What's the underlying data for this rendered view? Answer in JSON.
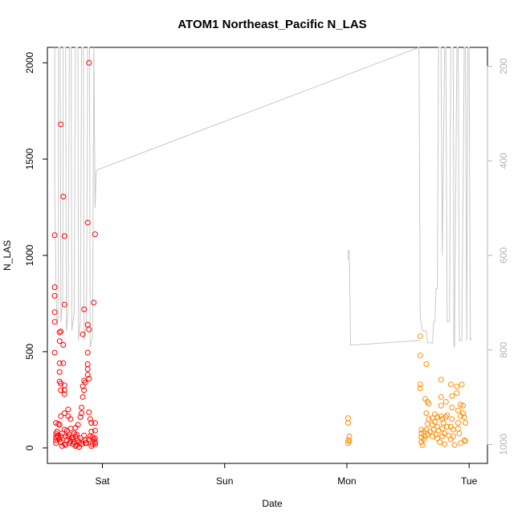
{
  "chart_data": {
    "type": "scatter",
    "title": "ATOM1 Northeast_Pacific N_LAS",
    "xlabel": "Date",
    "ylabel": "N_LAS",
    "x_axis": {
      "ticks": [
        {
          "label": "Sat",
          "day": 1
        },
        {
          "label": "Sun",
          "day": 2
        },
        {
          "label": "Mon",
          "day": 3
        },
        {
          "label": "Tue",
          "day": 4
        }
      ],
      "range_days": [
        0.55,
        4.15
      ],
      "note_units": "days relative to Friday 00:00"
    },
    "y_axis_left": {
      "ticks": [
        0,
        500,
        1000,
        1500,
        2000
      ],
      "range": [
        -80,
        2080
      ]
    },
    "y_axis_right": {
      "ticks": [
        200,
        400,
        600,
        800,
        1000
      ],
      "range": [
        1040,
        160
      ],
      "color": "#b4b4b4"
    },
    "colors": {
      "series_red": "#ff0000",
      "series_orange": "#ff8c00",
      "depth_line": "#c8c8c8"
    },
    "series": [
      {
        "color_key": "series_red",
        "points": [
          [
            0.61,
            1105
          ],
          [
            0.61,
            835
          ],
          [
            0.61,
            790
          ],
          [
            0.61,
            705
          ],
          [
            0.61,
            655
          ],
          [
            0.61,
            495
          ],
          [
            0.62,
            130
          ],
          [
            0.62,
            75
          ],
          [
            0.62,
            55
          ],
          [
            0.62,
            40
          ],
          [
            0.62,
            25
          ],
          [
            0.64,
            125
          ],
          [
            0.64,
            55
          ],
          [
            0.65,
            600
          ],
          [
            0.65,
            555
          ],
          [
            0.65,
            440
          ],
          [
            0.65,
            395
          ],
          [
            0.65,
            345
          ],
          [
            0.65,
            120
          ],
          [
            0.65,
            45
          ],
          [
            0.66,
            1680
          ],
          [
            0.66,
            605
          ],
          [
            0.66,
            335
          ],
          [
            0.66,
            300
          ],
          [
            0.66,
            165
          ],
          [
            0.66,
            60
          ],
          [
            0.66,
            30
          ],
          [
            0.68,
            1305
          ],
          [
            0.68,
            535
          ],
          [
            0.68,
            440
          ],
          [
            0.69,
            1100
          ],
          [
            0.69,
            745
          ],
          [
            0.69,
            325
          ],
          [
            0.69,
            300
          ],
          [
            0.69,
            280
          ],
          [
            0.69,
            180
          ],
          [
            0.69,
            95
          ],
          [
            0.69,
            20
          ],
          [
            0.7,
            60
          ],
          [
            0.7,
            15
          ],
          [
            0.71,
            40
          ],
          [
            0.72,
            200
          ],
          [
            0.72,
            165
          ],
          [
            0.72,
            60
          ],
          [
            0.73,
            70
          ],
          [
            0.73,
            25
          ],
          [
            0.74,
            150
          ],
          [
            0.74,
            100
          ],
          [
            0.74,
            35
          ],
          [
            0.75,
            55
          ],
          [
            0.76,
            20
          ],
          [
            0.77,
            75
          ],
          [
            0.77,
            30
          ],
          [
            0.78,
            105
          ],
          [
            0.78,
            60
          ],
          [
            0.78,
            10
          ],
          [
            0.79,
            15
          ],
          [
            0.8,
            120
          ],
          [
            0.8,
            40
          ],
          [
            0.81,
            30
          ],
          [
            0.81,
            5
          ],
          [
            0.82,
            160
          ],
          [
            0.82,
            50
          ],
          [
            0.83,
            210
          ],
          [
            0.83,
            180
          ],
          [
            0.83,
            20
          ],
          [
            0.84,
            590
          ],
          [
            0.84,
            320
          ],
          [
            0.84,
            265
          ],
          [
            0.85,
            720
          ],
          [
            0.85,
            350
          ],
          [
            0.85,
            300
          ],
          [
            0.85,
            65
          ],
          [
            0.86,
            340
          ],
          [
            0.86,
            40
          ],
          [
            0.87,
            25
          ],
          [
            0.88,
            1170
          ],
          [
            0.88,
            640
          ],
          [
            0.88,
            495
          ],
          [
            0.88,
            435
          ],
          [
            0.88,
            410
          ],
          [
            0.88,
            380
          ],
          [
            0.89,
            2000
          ],
          [
            0.89,
            615
          ],
          [
            0.89,
            360
          ],
          [
            0.89,
            185
          ],
          [
            0.89,
            45
          ],
          [
            0.9,
            150
          ],
          [
            0.9,
            60
          ],
          [
            0.91,
            130
          ],
          [
            0.91,
            85
          ],
          [
            0.92,
            20
          ],
          [
            0.93,
            755
          ],
          [
            0.93,
            45
          ],
          [
            0.94,
            1110
          ],
          [
            0.94,
            130
          ],
          [
            0.94,
            90
          ],
          [
            0.94,
            50
          ],
          [
            0.94,
            30
          ],
          [
            0.94,
            20
          ],
          [
            0.63,
            85
          ],
          [
            0.63,
            65
          ],
          [
            0.67,
            75
          ],
          [
            0.67,
            10
          ],
          [
            0.71,
            90
          ],
          [
            0.76,
            45
          ],
          [
            0.79,
            70
          ],
          [
            0.86,
            25
          ],
          [
            0.91,
            10
          ],
          [
            0.92,
            55
          ]
        ]
      },
      {
        "color_key": "series_orange",
        "points": [
          [
            3.01,
            155
          ],
          [
            3.01,
            130
          ],
          [
            3.01,
            40
          ],
          [
            3.01,
            25
          ],
          [
            3.02,
            60
          ],
          [
            3.02,
            35
          ],
          [
            3.6,
            580
          ],
          [
            3.6,
            480
          ],
          [
            3.6,
            330
          ],
          [
            3.6,
            310
          ],
          [
            3.61,
            95
          ],
          [
            3.61,
            75
          ],
          [
            3.61,
            55
          ],
          [
            3.61,
            30
          ],
          [
            3.62,
            15
          ],
          [
            3.63,
            85
          ],
          [
            3.63,
            45
          ],
          [
            3.64,
            255
          ],
          [
            3.64,
            60
          ],
          [
            3.65,
            435
          ],
          [
            3.65,
            180
          ],
          [
            3.65,
            95
          ],
          [
            3.66,
            240
          ],
          [
            3.66,
            125
          ],
          [
            3.66,
            70
          ],
          [
            3.67,
            230
          ],
          [
            3.67,
            150
          ],
          [
            3.68,
            85
          ],
          [
            3.7,
            155
          ],
          [
            3.7,
            120
          ],
          [
            3.7,
            60
          ],
          [
            3.71,
            95
          ],
          [
            3.72,
            175
          ],
          [
            3.72,
            135
          ],
          [
            3.73,
            70
          ],
          [
            3.74,
            160
          ],
          [
            3.74,
            110
          ],
          [
            3.74,
            50
          ],
          [
            3.75,
            90
          ],
          [
            3.76,
            30
          ],
          [
            3.77,
            355
          ],
          [
            3.77,
            265
          ],
          [
            3.77,
            220
          ],
          [
            3.77,
            165
          ],
          [
            3.78,
            150
          ],
          [
            3.78,
            100
          ],
          [
            3.78,
            60
          ],
          [
            3.79,
            130
          ],
          [
            3.8,
            20
          ],
          [
            3.8,
            75
          ],
          [
            3.81,
            240
          ],
          [
            3.81,
            160
          ],
          [
            3.82,
            170
          ],
          [
            3.82,
            110
          ],
          [
            3.83,
            65
          ],
          [
            3.85,
            330
          ],
          [
            3.85,
            110
          ],
          [
            3.85,
            45
          ],
          [
            3.86,
            270
          ],
          [
            3.86,
            210
          ],
          [
            3.86,
            150
          ],
          [
            3.87,
            95
          ],
          [
            3.87,
            60
          ],
          [
            3.88,
            15
          ],
          [
            3.9,
            320
          ],
          [
            3.9,
            285
          ],
          [
            3.91,
            195
          ],
          [
            3.91,
            130
          ],
          [
            3.91,
            100
          ],
          [
            3.92,
            75
          ],
          [
            3.93,
            225
          ],
          [
            3.93,
            165
          ],
          [
            3.93,
            25
          ],
          [
            3.94,
            330
          ],
          [
            3.95,
            220
          ],
          [
            3.95,
            180
          ],
          [
            3.96,
            160
          ],
          [
            3.96,
            40
          ],
          [
            3.97,
            130
          ],
          [
            3.97,
            35
          ]
        ]
      }
    ],
    "depth_line": {
      "axis": "right",
      "points": [
        [
          0.61,
          150
        ],
        [
          0.61,
          450
        ],
        [
          0.62,
          660
        ],
        [
          0.63,
          750
        ],
        [
          0.64,
          720
        ],
        [
          0.64,
          150
        ],
        [
          0.655,
          150
        ],
        [
          0.66,
          740
        ],
        [
          0.675,
          700
        ],
        [
          0.68,
          150
        ],
        [
          0.7,
          150
        ],
        [
          0.705,
          760
        ],
        [
          0.72,
          720
        ],
        [
          0.73,
          150
        ],
        [
          0.745,
          150
        ],
        [
          0.75,
          760
        ],
        [
          0.77,
          720
        ],
        [
          0.78,
          150
        ],
        [
          0.8,
          150
        ],
        [
          0.805,
          780
        ],
        [
          0.82,
          740
        ],
        [
          0.83,
          150
        ],
        [
          0.845,
          150
        ],
        [
          0.85,
          780
        ],
        [
          0.87,
          740
        ],
        [
          0.88,
          150
        ],
        [
          0.895,
          150
        ],
        [
          0.9,
          795
        ],
        [
          0.92,
          770
        ],
        [
          0.93,
          150
        ],
        [
          0.94,
          500
        ],
        [
          0.95,
          420
        ],
        [
          3.59,
          110
        ],
        [
          3.6,
          735
        ],
        [
          3.62,
          760
        ],
        [
          3.65,
          760
        ],
        [
          3.66,
          785
        ],
        [
          3.7,
          785
        ],
        [
          3.71,
          740
        ],
        [
          3.72,
          740
        ],
        [
          3.73,
          670
        ],
        [
          3.74,
          670
        ],
        [
          3.75,
          150
        ],
        [
          3.77,
          150
        ],
        [
          3.78,
          600
        ],
        [
          3.8,
          150
        ],
        [
          3.81,
          150
        ],
        [
          3.82,
          740
        ],
        [
          3.84,
          740
        ],
        [
          3.85,
          150
        ],
        [
          3.87,
          150
        ],
        [
          3.875,
          790
        ],
        [
          3.88,
          795
        ],
        [
          3.9,
          150
        ],
        [
          3.91,
          150
        ],
        [
          3.92,
          780
        ],
        [
          3.94,
          780
        ],
        [
          3.96,
          150
        ],
        [
          3.97,
          150
        ],
        [
          3.98,
          780
        ],
        [
          3.99,
          150
        ],
        [
          4.0,
          150
        ],
        [
          4.01,
          780
        ],
        [
          4.02,
          775
        ]
      ],
      "segments_note": "right-axis depth trace (second gray line on Monday)",
      "extra": [
        [
          3.01,
          610
        ],
        [
          3.01,
          590
        ],
        [
          3.02,
          590
        ],
        [
          3.03,
          790
        ],
        [
          3.6,
          780
        ]
      ]
    }
  }
}
